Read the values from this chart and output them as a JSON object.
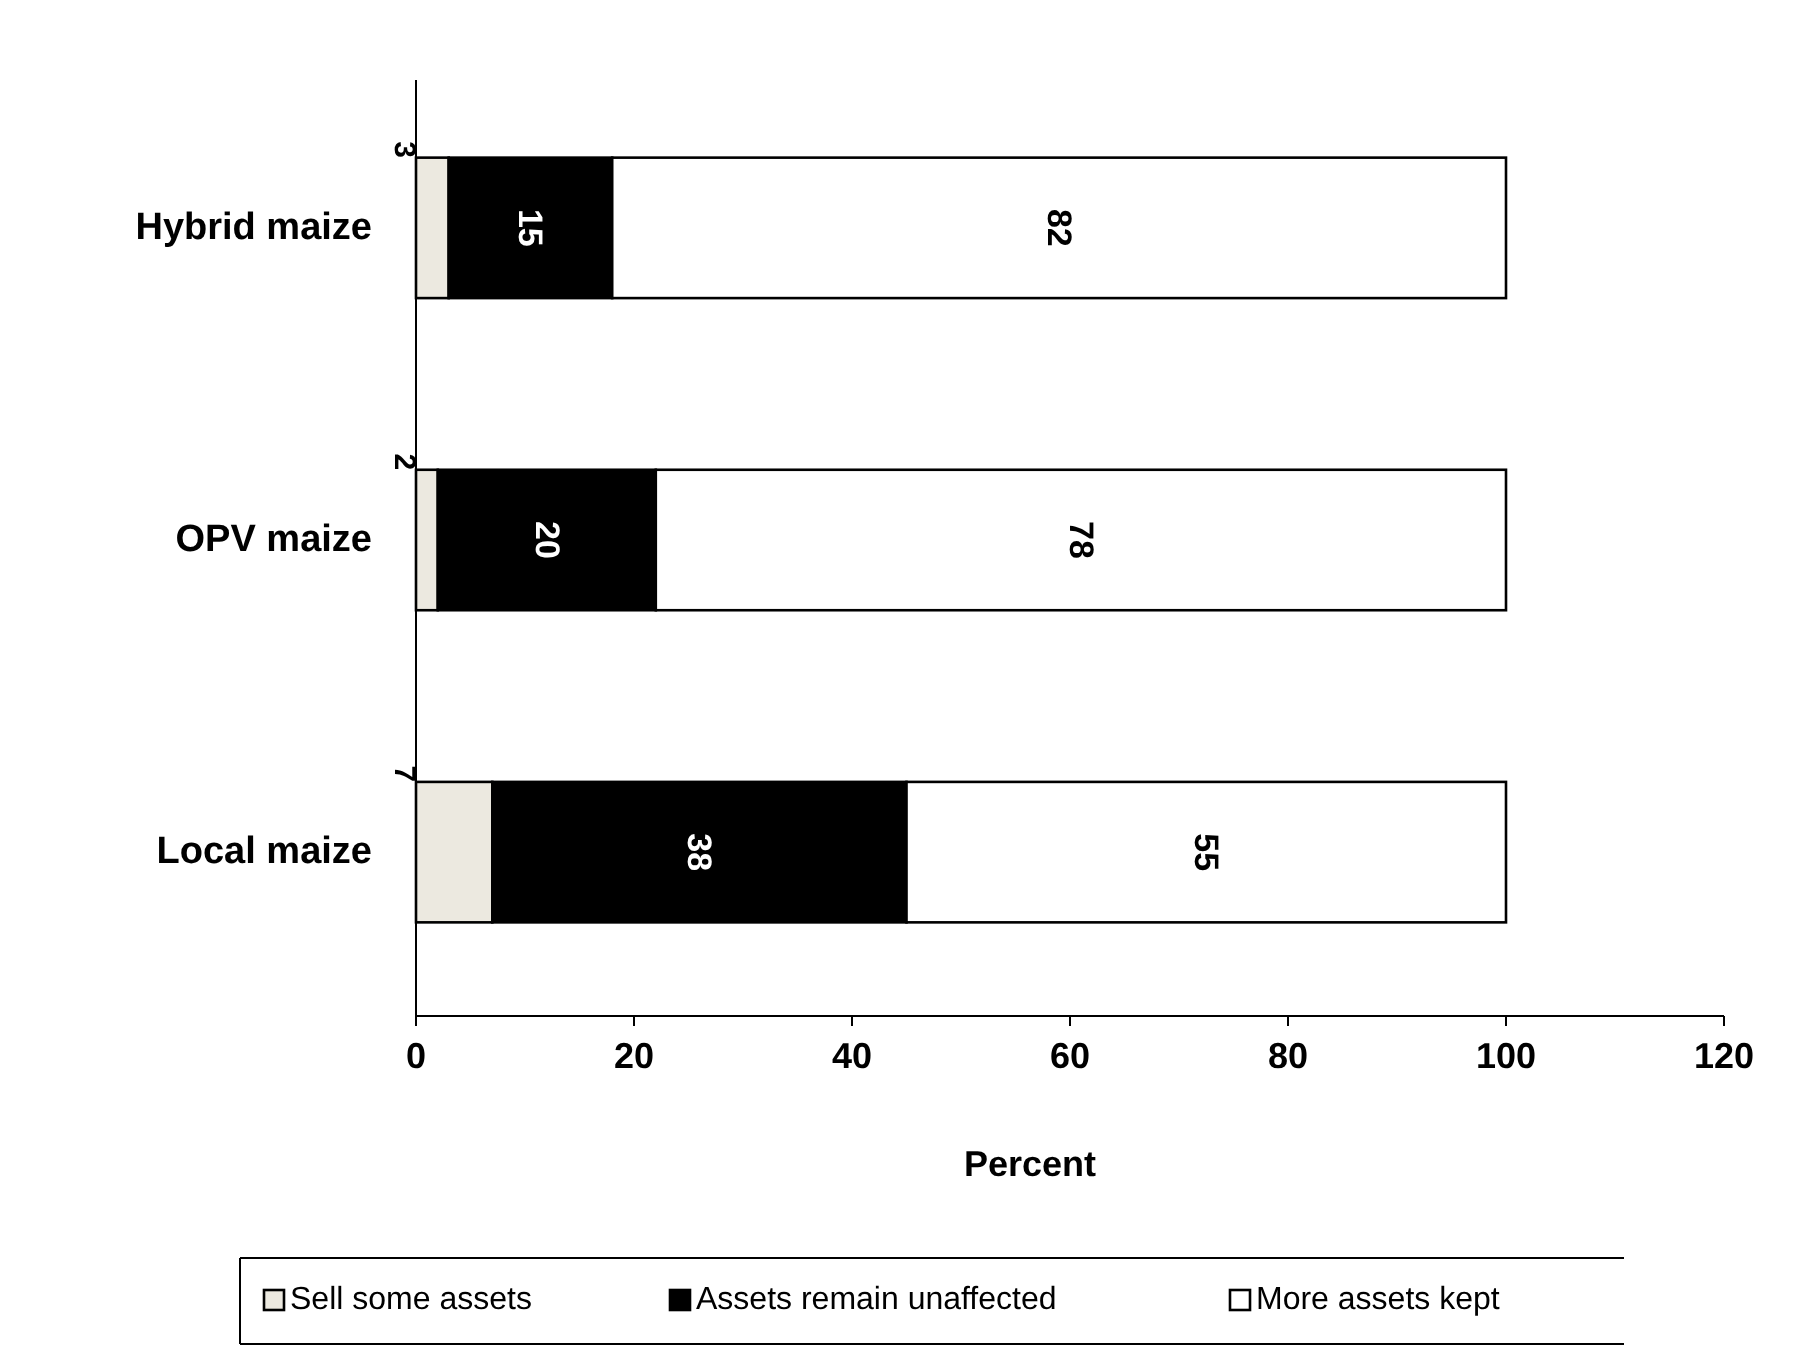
{
  "chart_data": {
    "type": "bar",
    "orientation": "horizontal",
    "stacked": true,
    "xlabel": "Percent",
    "categories": [
      "Hybrid maize",
      "OPV maize",
      "Local maize"
    ],
    "series": [
      {
        "name": "Sell some assets",
        "color": "#ece9e0",
        "values": [
          3,
          2,
          7
        ]
      },
      {
        "name": "Assets remain unaffected",
        "color": "#000000",
        "values": [
          15,
          20,
          38
        ]
      },
      {
        "name": "More assets kept",
        "color": "#ffffff",
        "values": [
          82,
          78,
          55
        ]
      }
    ],
    "xlim": [
      0,
      120
    ],
    "xticks": [
      0,
      20,
      40,
      60,
      80,
      100,
      120
    ],
    "data_labels": true,
    "legend": "bottom"
  }
}
